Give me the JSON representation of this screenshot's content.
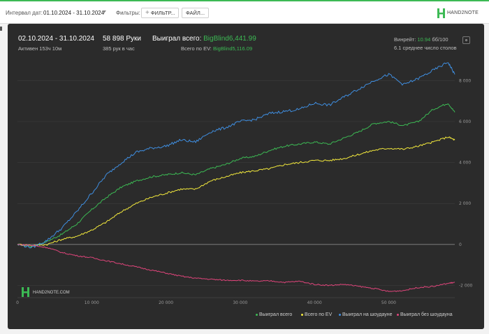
{
  "toolbar": {
    "date_label": "Интервал дат:",
    "date_value": "01.10.2024 - 31.10.2024",
    "filters_label": "Фильтры:",
    "filter_button": "ФИЛЬТР...",
    "file_button": "ФАЙЛ...",
    "brand": "HAND2NOTE"
  },
  "stats": {
    "date_range": "02.10.2024 - 31.10.2024",
    "active": "Активен 153ч 10м",
    "hands": "58 898 Руки",
    "hands_per_hour": "385 рук в час",
    "won_total_label": "Выиграл всего:",
    "won_total_value": "BigBlind6,441.99",
    "ev_total_label": "Всего по EV:",
    "ev_total_value": "BigBlind5,116.09",
    "winrate_label": "Винрейт:",
    "winrate_value": "10.94",
    "winrate_unit": "бб/100",
    "tables": "6.1 среднее число столов"
  },
  "watermark": "HAND2NOTE.COM",
  "colors": {
    "won_total": "#3cba54",
    "ev_total": "#f4ea3c",
    "won_showdown": "#3f8ee0",
    "won_no_showdown": "#e0457b",
    "accent": "#3cba54"
  },
  "chart_data": {
    "type": "line",
    "xlim": [
      0,
      58898
    ],
    "ylim": [
      -2600,
      9000
    ],
    "x_ticks": [
      "0",
      "10 000",
      "20 000",
      "30 000",
      "40 000",
      "50 000"
    ],
    "x_tick_values": [
      0,
      10000,
      20000,
      30000,
      40000,
      50000
    ],
    "y_ticks": [
      "8 000",
      "6 000",
      "4 000",
      "2 000",
      "0",
      "-2 000"
    ],
    "y_tick_values": [
      8000,
      6000,
      4000,
      2000,
      0,
      -2000
    ],
    "x": [
      0,
      2000,
      4000,
      6000,
      8000,
      10000,
      12000,
      14000,
      16000,
      18000,
      20000,
      22000,
      24000,
      26000,
      28000,
      30000,
      32000,
      34000,
      36000,
      38000,
      40000,
      42000,
      44000,
      46000,
      48000,
      50000,
      52000,
      54000,
      56000,
      58000,
      58898
    ],
    "series": [
      {
        "name": "Выиграл всего",
        "color": "#3cba54",
        "values": [
          0,
          -100,
          150,
          500,
          1000,
          1700,
          2300,
          2800,
          3100,
          3300,
          3400,
          3500,
          3400,
          3700,
          3900,
          4200,
          4300,
          4600,
          4800,
          4900,
          5000,
          4900,
          5200,
          5500,
          5900,
          6000,
          5800,
          6000,
          6600,
          6900,
          6450
        ]
      },
      {
        "name": "Всего по EV",
        "color": "#f4ea3c",
        "values": [
          0,
          -50,
          0,
          250,
          400,
          700,
          1100,
          1600,
          2000,
          2300,
          2500,
          2700,
          2700,
          3100,
          3300,
          3500,
          3600,
          3700,
          3900,
          4000,
          4100,
          4100,
          4200,
          4400,
          4600,
          4700,
          4650,
          4800,
          5000,
          5250,
          5100
        ]
      },
      {
        "name": "Выиграл на шоудауне",
        "color": "#3f8ee0",
        "values": [
          0,
          -150,
          200,
          800,
          1600,
          2500,
          3400,
          4000,
          4500,
          4700,
          4800,
          5100,
          5000,
          5500,
          5700,
          6000,
          6100,
          6400,
          6500,
          6600,
          6900,
          6800,
          7200,
          7600,
          8000,
          8300,
          7800,
          8100,
          8500,
          8900,
          8300
        ]
      },
      {
        "name": "Выиграл без шоудауна",
        "color": "#e0457b",
        "values": [
          0,
          -50,
          -150,
          -400,
          -550,
          -650,
          -800,
          -950,
          -1100,
          -1250,
          -1400,
          -1550,
          -1650,
          -1700,
          -1750,
          -1750,
          -1800,
          -1780,
          -1850,
          -1800,
          -1950,
          -2000,
          -1950,
          -2050,
          -2150,
          -2300,
          -2250,
          -2100,
          -2050,
          -1900,
          -1850
        ]
      }
    ]
  }
}
